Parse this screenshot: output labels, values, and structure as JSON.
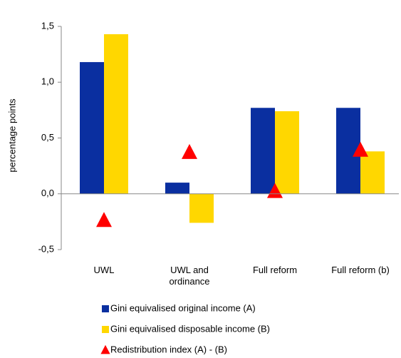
{
  "chart_data": {
    "type": "bar",
    "y_label": "percentage points",
    "categories": [
      "UWL",
      "UWL and ordinance",
      "Full reform",
      "Full reform (b)"
    ],
    "series": [
      {
        "name": "Gini equivalised original income (A)",
        "color": "#0a2fa0",
        "values": [
          1.18,
          0.1,
          0.77,
          0.77
        ]
      },
      {
        "name": "Gini equivalised disposable income (B)",
        "color": "#ffd700",
        "values": [
          1.43,
          -0.26,
          0.74,
          0.38
        ]
      },
      {
        "name": "Redistribution index (A) - (B)",
        "color": "#ff0000",
        "marker": "triangle",
        "values": [
          -0.24,
          0.37,
          0.02,
          0.39
        ]
      }
    ],
    "ylim": [
      -0.5,
      1.5
    ],
    "yticks": [
      {
        "value": -0.5,
        "label": "-0,5"
      },
      {
        "value": 0,
        "label": "0,0"
      },
      {
        "value": 0.5,
        "label": "0,5"
      },
      {
        "value": 1,
        "label": "1,0"
      },
      {
        "value": 1.5,
        "label": "1,5"
      }
    ],
    "legend": "bottom"
  }
}
